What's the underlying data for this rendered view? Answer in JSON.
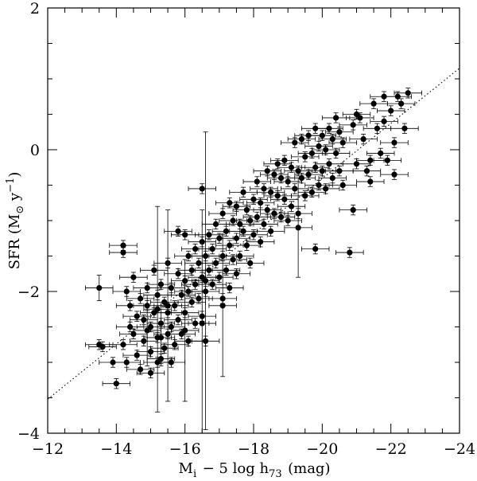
{
  "chart_data": {
    "type": "scatter",
    "title": "",
    "xlabel": "M_i − 5 log h_73 (mag)",
    "ylabel": "SFR (M_⊙ y^−1)",
    "xlim": [
      -12,
      -24
    ],
    "ylim": [
      -4,
      2
    ],
    "xticks": [
      -12,
      -14,
      -16,
      -18,
      -20,
      -22,
      -24
    ],
    "yticks": [
      -4,
      -2,
      0,
      2
    ],
    "x_minor_step": 0.5,
    "y_minor_step": 0.5,
    "grid": false,
    "legend": "none",
    "x_error_mag": 0.4,
    "fit_line": {
      "style": "dotted",
      "points": [
        [
          -12,
          -3.52
        ],
        [
          -24,
          1.15
        ]
      ]
    },
    "series": [
      {
        "marker": "filled-circle",
        "points": [
          [
            -13.5,
            -1.95,
            0.18
          ],
          [
            -13.5,
            -2.75,
            0.07
          ],
          [
            -13.6,
            -2.78,
            0.07
          ],
          [
            -13.9,
            -3.0,
            0.07
          ],
          [
            -14.0,
            -3.3,
            0.07
          ],
          [
            -14.2,
            -1.35,
            0.07
          ],
          [
            -14.2,
            -1.45,
            0.07
          ],
          [
            -14.3,
            -2.0,
            0.07
          ],
          [
            -14.4,
            -2.2,
            0.07
          ],
          [
            -14.4,
            -2.5,
            0.07
          ],
          [
            -14.5,
            -1.8,
            0.07
          ],
          [
            -14.5,
            -2.6,
            0.07
          ],
          [
            -14.2,
            -2.75,
            0.07
          ],
          [
            -14.3,
            -3.0,
            0.07
          ],
          [
            -14.6,
            -2.35,
            0.07
          ],
          [
            -14.6,
            -2.9,
            0.07
          ],
          [
            -14.7,
            -2.1,
            0.07
          ],
          [
            -14.7,
            -3.1,
            0.07
          ],
          [
            -14.8,
            -2.4,
            0.07
          ],
          [
            -14.8,
            -2.7,
            0.07
          ],
          [
            -14.9,
            -1.95,
            0.07
          ],
          [
            -14.9,
            -2.2,
            0.07
          ],
          [
            -15.0,
            -2.5,
            0.07
          ],
          [
            -15.0,
            -2.85,
            0.07
          ],
          [
            -15.0,
            -3.15,
            0.07
          ],
          [
            -15.1,
            -1.7,
            0.07
          ],
          [
            -15.1,
            -2.3,
            0.07
          ],
          [
            -15.2,
            -2.05,
            0.07
          ],
          [
            -15.2,
            -2.65,
            0.07
          ],
          [
            -15.2,
            -3.0,
            0.07
          ],
          [
            -15.3,
            -1.9,
            0.07
          ],
          [
            -15.3,
            -2.45,
            0.07
          ],
          [
            -15.3,
            -2.95,
            0.07
          ],
          [
            -15.4,
            -2.15,
            0.07
          ],
          [
            -15.4,
            -2.8,
            0.07
          ],
          [
            -15.5,
            -1.6,
            0.07
          ],
          [
            -15.5,
            -2.3,
            0.07
          ],
          [
            -15.5,
            -2.6,
            0.07
          ],
          [
            -15.6,
            -1.95,
            0.07
          ],
          [
            -15.6,
            -2.5,
            0.07
          ],
          [
            -15.6,
            -3.0,
            0.07
          ],
          [
            -15.7,
            -2.2,
            0.07
          ],
          [
            -15.7,
            -2.75,
            0.07
          ],
          [
            -15.8,
            -1.15,
            0.07
          ],
          [
            -15.8,
            -1.75,
            0.07
          ],
          [
            -15.8,
            -2.4,
            0.07
          ],
          [
            -15.9,
            -2.05,
            0.07
          ],
          [
            -15.9,
            -2.6,
            0.07
          ],
          [
            -16.0,
            -1.2,
            0.07
          ],
          [
            -16.0,
            -1.85,
            0.07
          ],
          [
            -16.0,
            -2.3,
            0.07
          ],
          [
            -16.1,
            -1.5,
            0.07
          ],
          [
            -16.1,
            -2.0,
            0.07
          ],
          [
            -16.1,
            -2.7,
            0.07
          ],
          [
            -16.2,
            -1.7,
            0.07
          ],
          [
            -16.2,
            -2.15,
            0.07
          ],
          [
            -16.3,
            -1.4,
            0.07
          ],
          [
            -16.3,
            -1.9,
            0.07
          ],
          [
            -16.3,
            -2.45,
            0.07
          ],
          [
            -16.4,
            -1.6,
            0.07
          ],
          [
            -16.4,
            -2.1,
            0.07
          ],
          [
            -16.5,
            -0.55,
            0.07
          ],
          [
            -16.5,
            -1.3,
            0.07
          ],
          [
            -16.5,
            -1.8,
            0.07
          ],
          [
            -16.5,
            -2.35,
            0.07
          ],
          [
            -16.6,
            -1.5,
            0.07
          ],
          [
            -16.6,
            -2.0,
            0.07
          ],
          [
            -16.6,
            -2.7,
            0.07
          ],
          [
            -16.7,
            -1.2,
            0.07
          ],
          [
            -16.7,
            -1.7,
            0.07
          ],
          [
            -16.8,
            -1.4,
            0.07
          ],
          [
            -16.8,
            -1.9,
            0.07
          ],
          [
            -16.9,
            -1.05,
            0.07
          ],
          [
            -16.9,
            -1.6,
            0.07
          ],
          [
            -17.0,
            -1.25,
            0.07
          ],
          [
            -17.0,
            -1.8,
            0.07
          ],
          [
            -17.1,
            -0.9,
            0.07
          ],
          [
            -17.1,
            -1.5,
            0.07
          ],
          [
            -17.1,
            -2.1,
            0.07
          ],
          [
            -17.2,
            -1.15,
            0.07
          ],
          [
            -17.2,
            -1.7,
            0.07
          ],
          [
            -17.3,
            -0.75,
            0.07
          ],
          [
            -17.3,
            -1.35,
            0.07
          ],
          [
            -17.3,
            -1.95,
            0.07
          ],
          [
            -17.4,
            -1.0,
            0.07
          ],
          [
            -17.4,
            -1.55,
            0.07
          ],
          [
            -17.5,
            -0.8,
            0.07
          ],
          [
            -17.5,
            -1.25,
            0.07
          ],
          [
            -17.5,
            -1.75,
            0.07
          ],
          [
            -17.6,
            -1.05,
            0.07
          ],
          [
            -17.6,
            -1.5,
            0.07
          ],
          [
            -17.7,
            -0.6,
            0.07
          ],
          [
            -17.7,
            -1.15,
            0.07
          ],
          [
            -17.8,
            -0.85,
            0.07
          ],
          [
            -17.8,
            -1.35,
            0.07
          ],
          [
            -17.9,
            -1.0,
            0.07
          ],
          [
            -17.9,
            -1.6,
            0.07
          ],
          [
            -18.0,
            -0.7,
            0.07
          ],
          [
            -18.0,
            -1.2,
            0.07
          ],
          [
            -18.1,
            -0.45,
            0.07
          ],
          [
            -18.1,
            -0.95,
            0.07
          ],
          [
            -18.2,
            -0.75,
            0.07
          ],
          [
            -18.2,
            -1.3,
            0.07
          ],
          [
            -18.3,
            -0.55,
            0.07
          ],
          [
            -18.3,
            -1.05,
            0.07
          ],
          [
            -18.4,
            -0.3,
            0.07
          ],
          [
            -18.4,
            -0.85,
            0.07
          ],
          [
            -18.5,
            -0.6,
            0.07
          ],
          [
            -18.5,
            -1.15,
            0.07
          ],
          [
            -18.6,
            -0.35,
            0.07
          ],
          [
            -18.6,
            -0.9,
            0.07
          ],
          [
            -18.7,
            -0.2,
            0.07
          ],
          [
            -18.7,
            -0.65,
            0.07
          ],
          [
            -18.8,
            -0.4,
            0.07
          ],
          [
            -18.8,
            -0.95,
            0.07
          ],
          [
            -18.9,
            -0.15,
            0.07
          ],
          [
            -18.9,
            -0.7,
            0.07
          ],
          [
            -19.0,
            -0.45,
            0.07
          ],
          [
            -19.0,
            -1.0,
            0.07
          ],
          [
            -19.1,
            -0.25,
            0.07
          ],
          [
            -19.1,
            -0.8,
            0.07
          ],
          [
            -19.2,
            0.1,
            0.07
          ],
          [
            -19.2,
            -0.55,
            0.07
          ],
          [
            -19.3,
            -0.3,
            0.07
          ],
          [
            -19.3,
            -0.9,
            0.07
          ],
          [
            -19.4,
            0.15,
            0.07
          ],
          [
            -19.4,
            -0.4,
            0.07
          ],
          [
            -19.5,
            -0.1,
            0.07
          ],
          [
            -19.5,
            -0.65,
            0.07
          ],
          [
            -19.6,
            0.2,
            0.07
          ],
          [
            -19.6,
            -0.35,
            0.07
          ],
          [
            -19.7,
            -0.05,
            0.07
          ],
          [
            -19.7,
            -0.6,
            0.07
          ],
          [
            -19.8,
            0.3,
            0.07
          ],
          [
            -19.8,
            -0.25,
            0.07
          ],
          [
            -19.8,
            -1.4,
            0.07
          ],
          [
            -19.9,
            0.05,
            0.07
          ],
          [
            -19.9,
            -0.5,
            0.07
          ],
          [
            -20.0,
            0.2,
            0.07
          ],
          [
            -20.0,
            -0.3,
            0.07
          ],
          [
            -20.1,
            0.0,
            0.07
          ],
          [
            -20.1,
            -0.55,
            0.07
          ],
          [
            -20.2,
            0.3,
            0.07
          ],
          [
            -20.2,
            -0.2,
            0.07
          ],
          [
            -20.3,
            0.15,
            0.07
          ],
          [
            -20.3,
            -0.4,
            0.07
          ],
          [
            -20.4,
            0.45,
            0.07
          ],
          [
            -20.4,
            -0.05,
            0.07
          ],
          [
            -20.5,
            0.25,
            0.07
          ],
          [
            -20.5,
            -0.3,
            0.07
          ],
          [
            -20.6,
            0.1,
            0.07
          ],
          [
            -20.6,
            -0.5,
            0.07
          ],
          [
            -20.8,
            -1.45,
            0.07
          ],
          [
            -20.9,
            0.35,
            0.07
          ],
          [
            -20.9,
            -0.85,
            0.07
          ],
          [
            -21.0,
            0.5,
            0.07
          ],
          [
            -21.0,
            -0.2,
            0.07
          ],
          [
            -21.1,
            0.45,
            0.07
          ],
          [
            -21.2,
            0.15,
            0.07
          ],
          [
            -21.3,
            -0.3,
            0.07
          ],
          [
            -21.4,
            -0.15,
            0.07
          ],
          [
            -21.4,
            -0.45,
            0.07
          ],
          [
            -21.5,
            0.65,
            0.07
          ],
          [
            -21.6,
            0.3,
            0.07
          ],
          [
            -21.7,
            -0.05,
            0.07
          ],
          [
            -21.8,
            0.75,
            0.07
          ],
          [
            -21.8,
            0.4,
            0.07
          ],
          [
            -21.9,
            -0.15,
            0.07
          ],
          [
            -22.0,
            0.55,
            0.07
          ],
          [
            -22.1,
            0.1,
            0.07
          ],
          [
            -22.1,
            -0.35,
            0.07
          ],
          [
            -22.2,
            0.75,
            0.07
          ],
          [
            -22.3,
            0.65,
            0.07
          ],
          [
            -22.4,
            0.3,
            0.07
          ],
          [
            -22.5,
            0.8,
            0.07
          ],
          [
            -15.2,
            -2.25,
            1.45
          ],
          [
            -15.5,
            -2.2,
            1.35
          ],
          [
            -16.0,
            -2.55,
            1.0
          ],
          [
            -16.5,
            -2.45,
            1.6
          ],
          [
            -16.6,
            -1.85,
            2.1
          ],
          [
            -17.1,
            -2.2,
            1.0
          ],
          [
            -19.3,
            -1.1,
            0.7
          ],
          [
            -14.9,
            -2.55,
            0.5
          ],
          [
            -15.3,
            -2.65,
            0.4
          ]
        ]
      }
    ]
  }
}
